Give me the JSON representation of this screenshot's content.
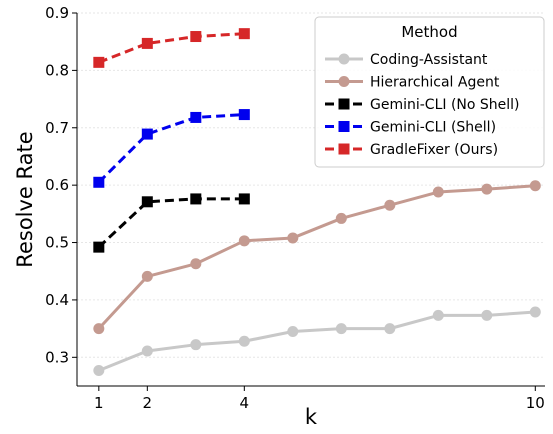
{
  "chart_data": {
    "type": "line",
    "xlabel": "k",
    "ylabel": "Resolve Rate",
    "xlim": [
      0.55,
      10.2
    ],
    "ylim": [
      0.25,
      0.9
    ],
    "xticks": [
      1,
      2,
      4,
      10
    ],
    "yticks": [
      0.3,
      0.4,
      0.5,
      0.6,
      0.7,
      0.8,
      0.9
    ],
    "grid": true,
    "legend": {
      "title": "Method",
      "placement": "top-right"
    },
    "series": [
      {
        "name": "Coding-Assistant",
        "color": "#c8c8c8",
        "marker": "circle",
        "dashed": false,
        "x": [
          1,
          2,
          3,
          4,
          5,
          6,
          7,
          8,
          9,
          10
        ],
        "y": [
          0.277,
          0.311,
          0.322,
          0.328,
          0.345,
          0.35,
          0.35,
          0.373,
          0.373,
          0.379
        ]
      },
      {
        "name": "Hierarchical Agent",
        "color": "#c49a90",
        "marker": "circle",
        "dashed": false,
        "x": [
          1,
          2,
          3,
          4,
          5,
          6,
          7,
          8,
          9,
          10
        ],
        "y": [
          0.35,
          0.441,
          0.463,
          0.503,
          0.508,
          0.542,
          0.565,
          0.588,
          0.593,
          0.599
        ]
      },
      {
        "name": "Gemini-CLI (No Shell)",
        "color": "#000000",
        "marker": "square",
        "dashed": true,
        "x": [
          1,
          2,
          3,
          4
        ],
        "y": [
          0.492,
          0.571,
          0.576,
          0.576
        ]
      },
      {
        "name": "Gemini-CLI (Shell)",
        "color": "#0000ee",
        "marker": "square",
        "dashed": true,
        "x": [
          1,
          2,
          3,
          4
        ],
        "y": [
          0.605,
          0.689,
          0.718,
          0.723
        ]
      },
      {
        "name": "GradleFixer (Ours)",
        "color": "#d62728",
        "marker": "square",
        "dashed": true,
        "x": [
          1,
          2,
          3,
          4
        ],
        "y": [
          0.814,
          0.847,
          0.859,
          0.864
        ]
      }
    ]
  }
}
